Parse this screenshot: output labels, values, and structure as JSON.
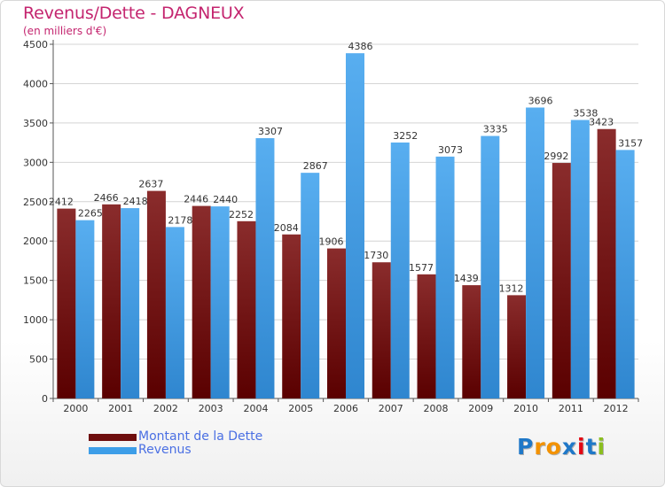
{
  "title": "Revenus/Dette - DAGNEUX",
  "subtitle": "(en milliers d'€)",
  "logo": {
    "text": "Proxiti",
    "colors": [
      "#1f78c8",
      "#f39200",
      "#f39200",
      "#1f78c8",
      "#e30613",
      "#1f78c8",
      "#8bbf1f"
    ]
  },
  "chart_data": {
    "type": "bar",
    "categories": [
      "2000",
      "2001",
      "2002",
      "2003",
      "2004",
      "2005",
      "2006",
      "2007",
      "2008",
      "2009",
      "2010",
      "2011",
      "2012"
    ],
    "series": [
      {
        "name": "Montant de la Dette",
        "color": "#7a1a1a",
        "values": [
          2412,
          2466,
          2637,
          2446,
          2252,
          2084,
          1906,
          1730,
          1577,
          1439,
          1312,
          2992,
          3423
        ]
      },
      {
        "name": "Revenus",
        "color": "#3d9ee8",
        "values": [
          2265,
          2418,
          2178,
          2440,
          3307,
          2867,
          4386,
          3252,
          3073,
          3335,
          3696,
          3538,
          3157
        ]
      }
    ],
    "yticks": [
      0,
      500,
      1000,
      1500,
      2000,
      2500,
      3000,
      3500,
      4000,
      4500
    ],
    "ylim": [
      0,
      4500
    ],
    "grid": true,
    "legend_position": "bottom-left"
  }
}
